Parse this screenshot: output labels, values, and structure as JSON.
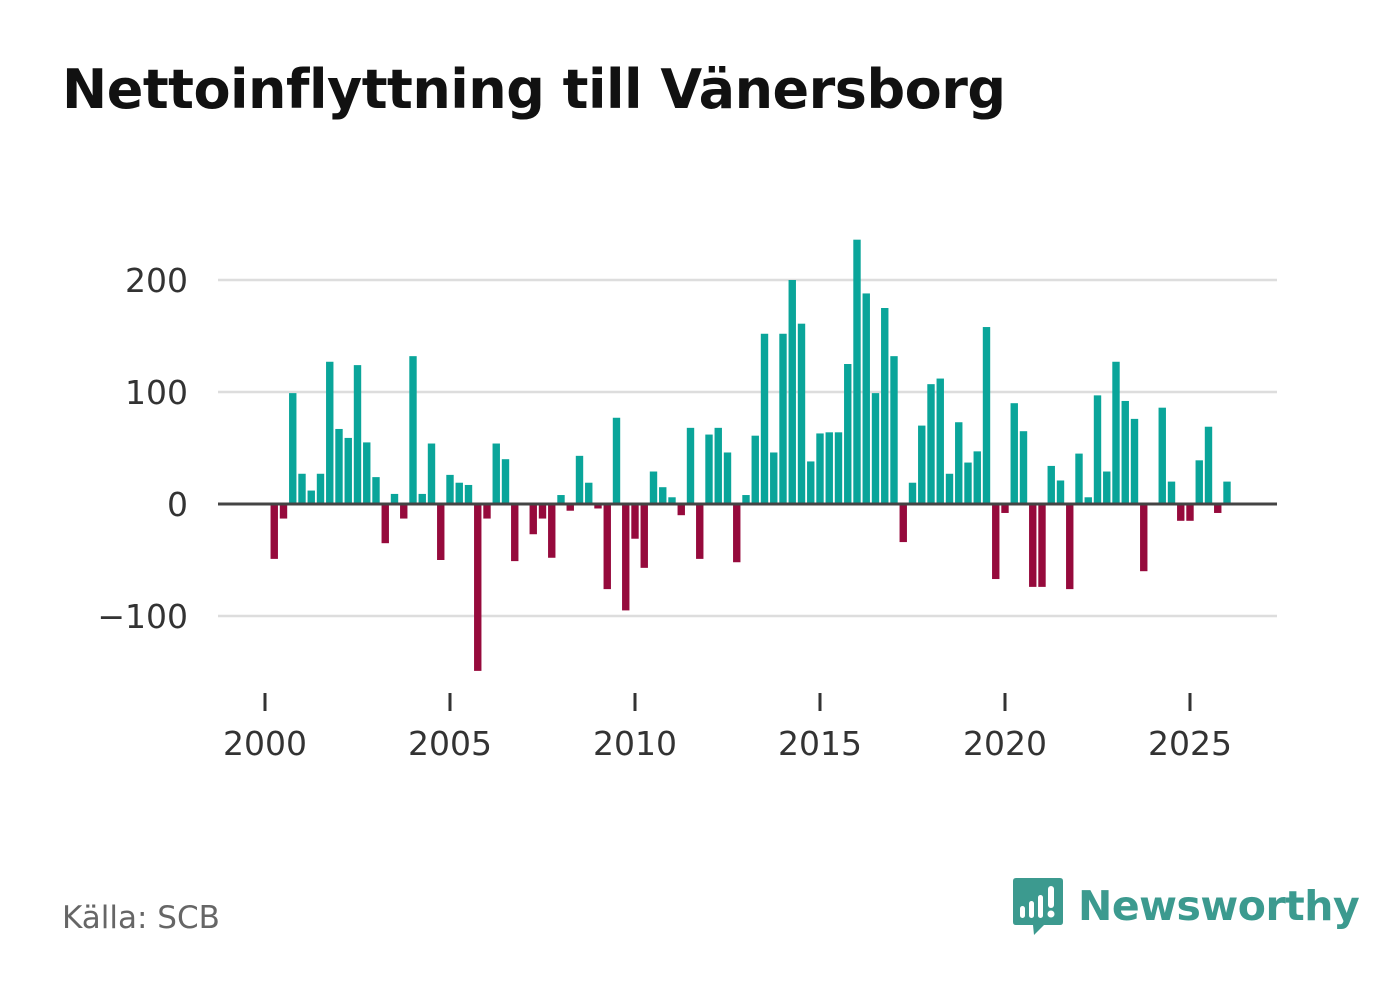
{
  "title": "Nettoinflyttning till Vänersborg",
  "source": "Källa: SCB",
  "brand": "Newsworthy",
  "colors": {
    "positive": "#0aa59a",
    "negative": "#960a3c",
    "grid": "#dddddd",
    "zero_line": "#444444",
    "brand": "#3c9a8f"
  },
  "chart_data": {
    "type": "bar",
    "title": "Nettoinflyttning till Vänersborg",
    "xlabel": "",
    "ylabel": "",
    "x_interval": "quarter",
    "x_start": 2000.0,
    "xlim": [
      1999.65,
      2027.3
    ],
    "ylim": [
      -165,
      245
    ],
    "yticks": [
      -100,
      0,
      100,
      200
    ],
    "ytick_labels": [
      "−100",
      "0",
      "100",
      "200"
    ],
    "xticks": [
      2000,
      2005,
      2010,
      2015,
      2020,
      2025
    ],
    "xtick_labels": [
      "2000",
      "2005",
      "2010",
      "2015",
      "2020",
      "2025"
    ],
    "values": [
      0,
      -49,
      -13,
      99,
      27,
      12,
      27,
      127,
      67,
      59,
      124,
      55,
      24,
      -35,
      9,
      -13,
      132,
      9,
      54,
      -50,
      26,
      19,
      17,
      -149,
      -13,
      54,
      40,
      -51,
      0,
      -27,
      -13,
      -48,
      8,
      -6,
      43,
      19,
      -4,
      -76,
      77,
      -95,
      -31,
      -57,
      29,
      15,
      6,
      -10,
      68,
      -49,
      62,
      68,
      46,
      -52,
      8,
      61,
      152,
      46,
      152,
      200,
      161,
      38,
      63,
      64,
      64,
      125,
      236,
      188,
      99,
      175,
      132,
      -34,
      19,
      70,
      107,
      112,
      27,
      73,
      37,
      47,
      158,
      -67,
      -8,
      90,
      65,
      -74,
      -74,
      34,
      21,
      -76,
      45,
      6,
      97,
      29,
      127,
      92,
      76,
      -60,
      0,
      86,
      20,
      -15,
      -15,
      39,
      69,
      -8,
      20
    ]
  }
}
